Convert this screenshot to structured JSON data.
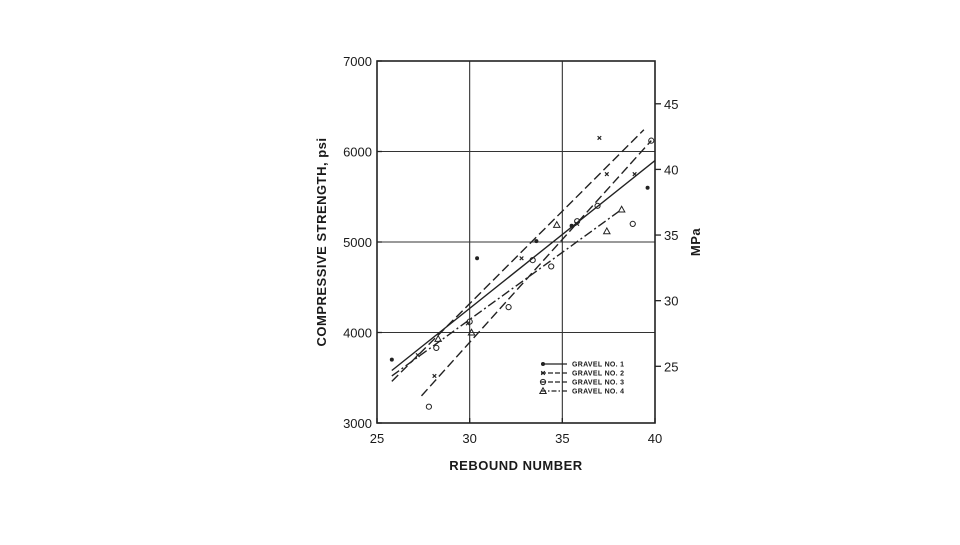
{
  "chart_data": {
    "type": "scatter",
    "xlabel": "REBOUND NUMBER",
    "ylabel": "COMPRESSIVE STRENGTH, psi",
    "y2label": "MPa",
    "xlim": [
      25,
      40
    ],
    "ylim": [
      3000,
      7000
    ],
    "y2lim": [
      20.68,
      48.26
    ],
    "x_ticks": [
      25,
      30,
      35,
      40
    ],
    "y_ticks": [
      3000,
      4000,
      5000,
      6000,
      7000
    ],
    "y2_ticks": [
      25,
      30,
      35,
      40,
      45
    ],
    "x_tick_labels": [
      "25",
      "30",
      "35",
      "40"
    ],
    "y_tick_labels": [
      "3000",
      "4000",
      "5000",
      "6000",
      "7000"
    ],
    "y2_tick_labels": [
      "25",
      "30",
      "35",
      "40",
      "45"
    ],
    "grid": true,
    "legend_position": "bottom-right",
    "series": [
      {
        "name": "GRAVEL NO. 1",
        "marker": "dot",
        "line_style": "solid",
        "line": [
          [
            25.8,
            3580
          ],
          [
            40,
            5900
          ]
        ],
        "points": [
          [
            25.8,
            3700
          ],
          [
            30.4,
            4820
          ],
          [
            33.6,
            5010
          ],
          [
            35.5,
            5180
          ],
          [
            39.6,
            5600
          ]
        ]
      },
      {
        "name": "GRAVEL NO. 2",
        "marker": "x",
        "line_style": "dashed",
        "line": [
          [
            25.8,
            3460
          ],
          [
            39.4,
            6240
          ]
        ],
        "points": [
          [
            27.2,
            3750
          ],
          [
            28.1,
            3520
          ],
          [
            29.9,
            4100
          ],
          [
            32.8,
            4820
          ],
          [
            35.8,
            5200
          ],
          [
            37.0,
            6150
          ],
          [
            37.4,
            5750
          ],
          [
            38.9,
            5750
          ]
        ]
      },
      {
        "name": "GRAVEL NO. 3",
        "marker": "circle",
        "line_style": "dashed",
        "line": [
          [
            27.4,
            3300
          ],
          [
            39.8,
            6120
          ]
        ],
        "points": [
          [
            27.8,
            3180
          ],
          [
            28.2,
            3830
          ],
          [
            30.0,
            4120
          ],
          [
            32.1,
            4280
          ],
          [
            33.4,
            4800
          ],
          [
            34.4,
            4730
          ],
          [
            35.8,
            5230
          ],
          [
            36.9,
            5400
          ],
          [
            38.8,
            5200
          ],
          [
            39.8,
            6120
          ]
        ]
      },
      {
        "name": "GRAVEL NO. 4",
        "marker": "triangle",
        "line_style": "dashdot",
        "line": [
          [
            25.8,
            3520
          ],
          [
            38.2,
            5360
          ]
        ],
        "points": [
          [
            28.3,
            3930
          ],
          [
            30.1,
            4000
          ],
          [
            34.7,
            5190
          ],
          [
            37.4,
            5120
          ],
          [
            38.2,
            5360
          ]
        ]
      }
    ]
  }
}
